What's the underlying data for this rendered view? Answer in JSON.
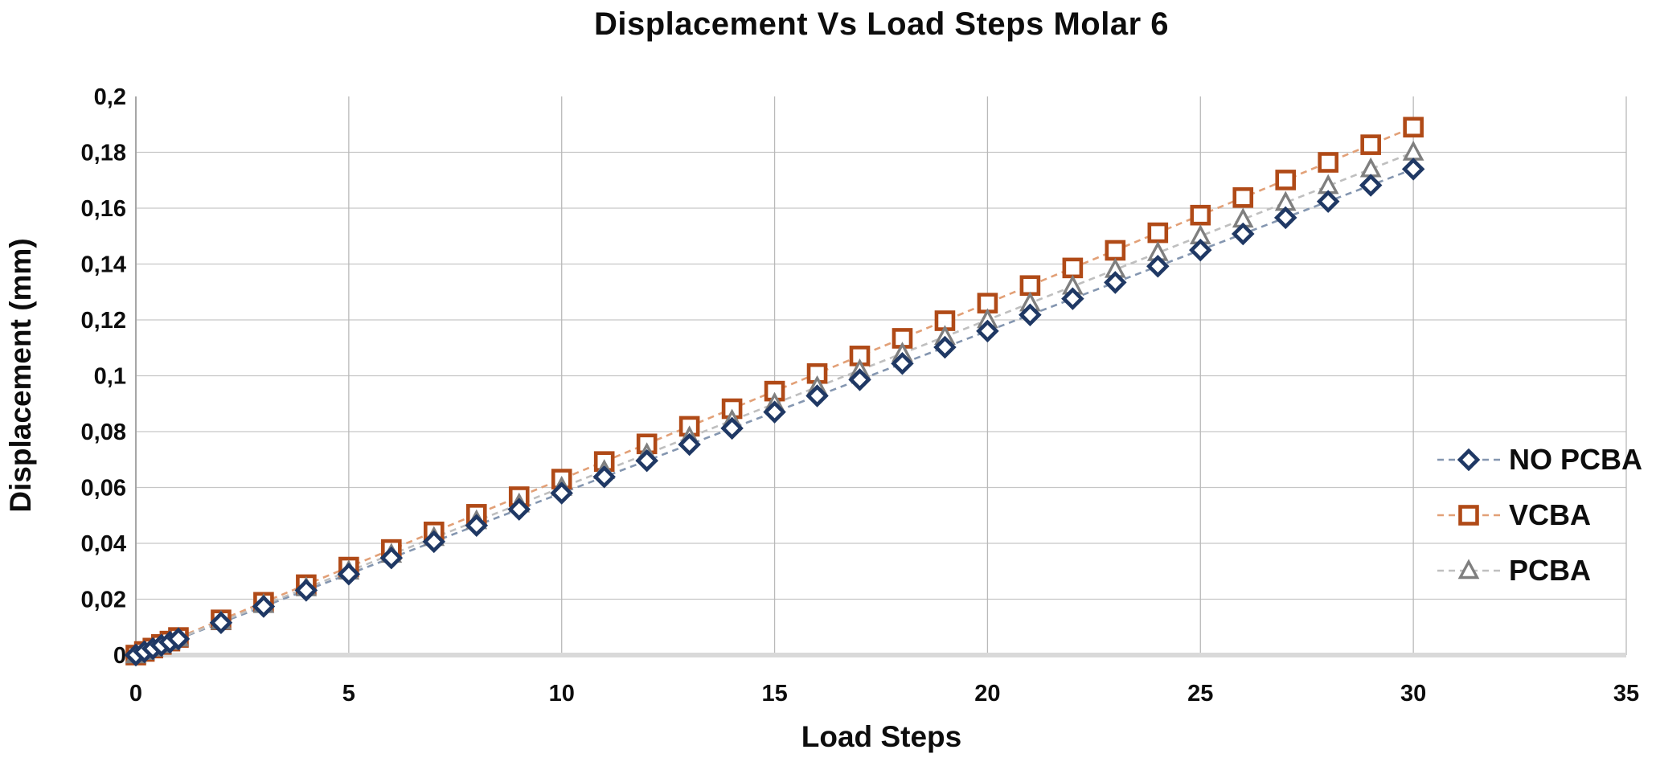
{
  "chart_data": {
    "type": "line",
    "title": "Displacement Vs Load Steps Molar 6",
    "xlabel": "Load Steps",
    "ylabel": "Displacement (mm)",
    "xlim": [
      0,
      35
    ],
    "ylim": [
      0,
      0.2
    ],
    "grid": "both",
    "legend_position": "inside-right",
    "x_ticks": [
      0,
      5,
      10,
      15,
      20,
      25,
      30,
      35
    ],
    "x_tick_labels": [
      "0",
      "5",
      "10",
      "15",
      "20",
      "25",
      "30",
      "35"
    ],
    "y_ticks": [
      0,
      0.02,
      0.04,
      0.06,
      0.08,
      0.1,
      0.12,
      0.14,
      0.16,
      0.18,
      0.2
    ],
    "y_tick_labels": [
      "0",
      "0,02",
      "0,04",
      "0,06",
      "0,08",
      "0,1",
      "0,12",
      "0,14",
      "0,16",
      "0,18",
      "0,2"
    ],
    "x": [
      0,
      0.2,
      0.4,
      0.6,
      0.8,
      1,
      2,
      3,
      4,
      5,
      6,
      7,
      8,
      9,
      10,
      11,
      12,
      13,
      14,
      15,
      16,
      17,
      18,
      19,
      20,
      21,
      22,
      23,
      24,
      25,
      26,
      27,
      28,
      29,
      30
    ],
    "series": [
      {
        "name": "NO PCBA",
        "marker": "diamond",
        "marker_color": "#1f3864",
        "line_color": "#8496b0",
        "values": [
          0,
          0.0012,
          0.0023,
          0.0035,
          0.0046,
          0.0058,
          0.0116,
          0.0174,
          0.0232,
          0.029,
          0.0348,
          0.0406,
          0.0464,
          0.0522,
          0.058,
          0.0638,
          0.0696,
          0.0754,
          0.0812,
          0.087,
          0.0928,
          0.0986,
          0.1044,
          0.1102,
          0.116,
          0.1218,
          0.1276,
          0.1334,
          0.1392,
          0.145,
          0.1508,
          0.1566,
          0.1624,
          0.1682,
          0.174
        ]
      },
      {
        "name": "VCBA",
        "marker": "square",
        "marker_color": "#b04a17",
        "line_color": "#e2a077",
        "values": [
          0,
          0.0013,
          0.0025,
          0.0038,
          0.005,
          0.0063,
          0.0126,
          0.0189,
          0.0252,
          0.0315,
          0.0378,
          0.0441,
          0.0504,
          0.0567,
          0.063,
          0.0693,
          0.0756,
          0.0819,
          0.0882,
          0.0945,
          0.1008,
          0.1071,
          0.1134,
          0.1197,
          0.126,
          0.1323,
          0.1386,
          0.1449,
          0.1512,
          0.1575,
          0.1638,
          0.1701,
          0.1764,
          0.1827,
          0.189
        ]
      },
      {
        "name": "PCBA",
        "marker": "triangle",
        "marker_color": "#7f7f7f",
        "line_color": "#bfbfbf",
        "values": [
          0,
          0.0012,
          0.0024,
          0.0036,
          0.0048,
          0.006,
          0.012,
          0.018,
          0.024,
          0.03,
          0.036,
          0.042,
          0.048,
          0.054,
          0.06,
          0.066,
          0.072,
          0.078,
          0.084,
          0.09,
          0.096,
          0.102,
          0.108,
          0.114,
          0.12,
          0.126,
          0.132,
          0.138,
          0.144,
          0.15,
          0.156,
          0.162,
          0.168,
          0.174,
          0.18
        ]
      }
    ],
    "colors": {
      "gridline": "#c6c6c6",
      "vertical_gridline": "#b9b9b9",
      "zero_axis_line": "#d9d9d9",
      "y_axis_line": "#a6a6a6",
      "text": "#0d0d0d"
    }
  }
}
